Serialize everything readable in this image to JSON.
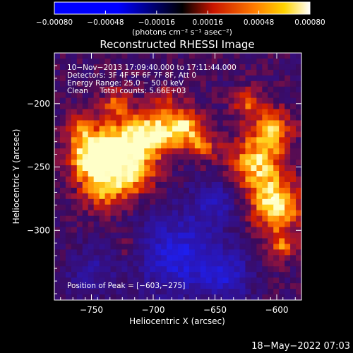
{
  "colorbar": {
    "ticks": [
      "-0.00080",
      "-0.00048",
      "-0.00016",
      "0.00016",
      "0.00048",
      "0.00080"
    ],
    "unit_label": "(photons cm⁻² s⁻¹ asec⁻²)",
    "min": -0.0008,
    "max": 0.0008
  },
  "chart_data": {
    "type": "heatmap",
    "title": "Reconstructed RHESSI Image",
    "xlabel": "Heliocentric X (arcsec)",
    "ylabel": "Heliocentric Y (arcsec)",
    "xlim": [
      -780,
      -580
    ],
    "ylim": [
      -355,
      -160
    ],
    "x_ticks": [
      -750,
      -700,
      -650,
      -600
    ],
    "x_tick_labels": [
      "−750",
      "−700",
      "−650",
      "−600"
    ],
    "y_ticks": [
      -200,
      -250,
      -300
    ],
    "y_tick_labels": [
      "−200",
      "−250",
      "−300"
    ],
    "peak": {
      "x": -603,
      "y": -275,
      "label": "Position of Peak = [−603,−275]"
    },
    "annotations": [
      "10−Nov−2013 17:09:40.000 to 17:11:44.000",
      "Detectors: 3F 4F 5F 6F 7F 8F, Att 0",
      "Energy Range: 25.0 − 50.0 keV",
      "Clean     Total counts: 5.66E+03"
    ],
    "colormap": "red-temperature",
    "grid": false
  },
  "footer": {
    "timestamp": "18−May−2022 07:03"
  }
}
